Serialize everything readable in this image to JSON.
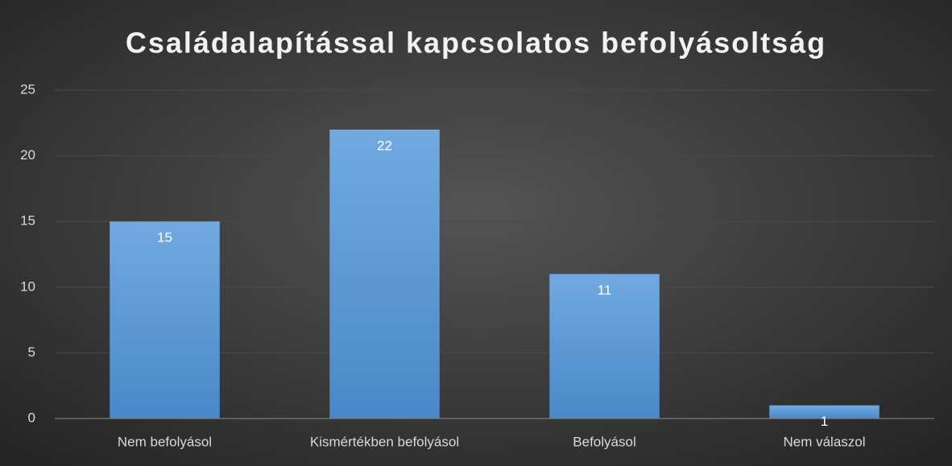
{
  "chart_data": {
    "type": "bar",
    "title": "Családalapítással kapcsolatos befolyásoltság",
    "categories": [
      "Nem befolyásol",
      "Kismértékben befolyásol",
      "Befolyásol",
      "Nem válaszol"
    ],
    "values": [
      15,
      22,
      11,
      1
    ],
    "color": "#5b9bd5",
    "ylim": [
      0,
      25
    ],
    "yticks": [
      0,
      5,
      10,
      15,
      20,
      25
    ],
    "grid": true
  }
}
